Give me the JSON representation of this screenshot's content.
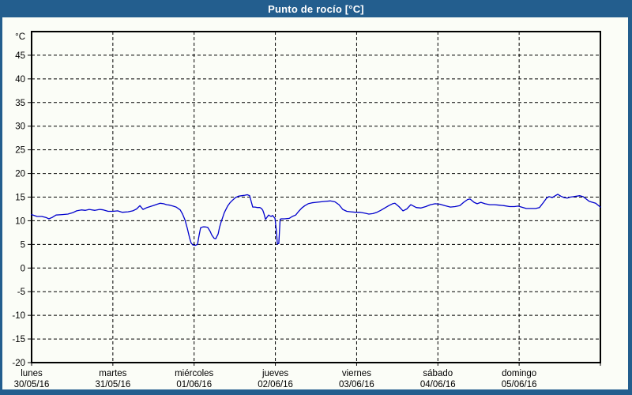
{
  "window": {
    "title": "Punto de rocío [°C]"
  },
  "colors": {
    "chrome": "#235e8e",
    "title_text": "#ffffff",
    "canvas_bg": "#fbfdf7",
    "plot_border": "#000000",
    "grid": "#000000",
    "label_text": "#000000",
    "series_line": "#0000cd"
  },
  "chart_data": {
    "type": "line",
    "title": "Punto de rocío [°C]",
    "unit_label": "°C",
    "ylim": [
      -20,
      50
    ],
    "yticks": [
      45,
      40,
      35,
      30,
      25,
      20,
      15,
      10,
      5,
      0,
      -5,
      -10,
      -15,
      -20
    ],
    "grid": "dashed",
    "x_range_hours": [
      0,
      168
    ],
    "x_day_tick_hours": [
      0,
      24,
      48,
      72,
      96,
      120,
      144,
      168
    ],
    "x_days": [
      {
        "name": "lunes",
        "date": "30/05/16",
        "start_hour": 0
      },
      {
        "name": "martes",
        "date": "31/05/16",
        "start_hour": 24
      },
      {
        "name": "miércoles",
        "date": "01/06/16",
        "start_hour": 48
      },
      {
        "name": "jueves",
        "date": "02/06/16",
        "start_hour": 72
      },
      {
        "name": "viernes",
        "date": "03/06/16",
        "start_hour": 96
      },
      {
        "name": "sábado",
        "date": "04/06/16",
        "start_hour": 120
      },
      {
        "name": "domingo",
        "date": "05/06/16",
        "start_hour": 144
      }
    ],
    "series": [
      {
        "name": "Punto de rocío",
        "color": "#0000cd",
        "points": [
          [
            0,
            11.3
          ],
          [
            1.6,
            10.9
          ],
          [
            3,
            10.9
          ],
          [
            4.2,
            10.7
          ],
          [
            5.1,
            10.4
          ],
          [
            6.1,
            10.7
          ],
          [
            7.2,
            11.2
          ],
          [
            9.1,
            11.3
          ],
          [
            10.7,
            11.4
          ],
          [
            12.1,
            11.7
          ],
          [
            13.3,
            12.1
          ],
          [
            14.7,
            12.3
          ],
          [
            15.9,
            12.2
          ],
          [
            17,
            12.4
          ],
          [
            18.7,
            12.2
          ],
          [
            20.1,
            12.4
          ],
          [
            21.2,
            12.3
          ],
          [
            22.6,
            12
          ],
          [
            24,
            12
          ],
          [
            25.4,
            12.1
          ],
          [
            26.8,
            11.8
          ],
          [
            28.5,
            11.9
          ],
          [
            29.9,
            12.1
          ],
          [
            31,
            12.5
          ],
          [
            32,
            13.2
          ],
          [
            32.9,
            12.4
          ],
          [
            34.1,
            12.8
          ],
          [
            35,
            13
          ],
          [
            35.9,
            13.2
          ],
          [
            37.1,
            13.5
          ],
          [
            38,
            13.7
          ],
          [
            39,
            13.6
          ],
          [
            39.9,
            13.4
          ],
          [
            40.8,
            13.3
          ],
          [
            41.8,
            13.1
          ],
          [
            42.7,
            12.9
          ],
          [
            43.9,
            12.3
          ],
          [
            44.6,
            11.4
          ],
          [
            45.3,
            10.2
          ],
          [
            46,
            8.4
          ],
          [
            46.7,
            6.3
          ],
          [
            47.1,
            5.3
          ],
          [
            47.6,
            4.9
          ],
          [
            48.3,
            4.8
          ],
          [
            49,
            5
          ],
          [
            49.5,
            7
          ],
          [
            49.9,
            8.5
          ],
          [
            50.6,
            8.7
          ],
          [
            51.3,
            8.7
          ],
          [
            52,
            8.6
          ],
          [
            52.7,
            7.8
          ],
          [
            53.2,
            7
          ],
          [
            53.9,
            6.3
          ],
          [
            54.4,
            6.2
          ],
          [
            55.1,
            7.2
          ],
          [
            55.5,
            8.6
          ],
          [
            56,
            9.8
          ],
          [
            56.5,
            10.8
          ],
          [
            56.9,
            11.7
          ],
          [
            57.4,
            12.4
          ],
          [
            57.9,
            13.1
          ],
          [
            58.6,
            13.8
          ],
          [
            59.3,
            14.3
          ],
          [
            60.2,
            14.9
          ],
          [
            61.1,
            15.2
          ],
          [
            62.1,
            15.3
          ],
          [
            63,
            15.4
          ],
          [
            63.7,
            15.5
          ],
          [
            64.4,
            15.3
          ],
          [
            64.9,
            14
          ],
          [
            65.3,
            12.9
          ],
          [
            66,
            12.9
          ],
          [
            66.7,
            12.8
          ],
          [
            67.4,
            12.8
          ],
          [
            67.9,
            12.6
          ],
          [
            68.3,
            12.2
          ],
          [
            68.6,
            11.6
          ],
          [
            69.1,
            10.3
          ],
          [
            70,
            11.2
          ],
          [
            70.7,
            10.9
          ],
          [
            71.2,
            11.1
          ],
          [
            71.9,
            10.5
          ],
          [
            72.3,
            7.8
          ],
          [
            72.6,
            5.1
          ],
          [
            73,
            5.2
          ],
          [
            73.4,
            10.3
          ],
          [
            73.7,
            10.4
          ],
          [
            74.7,
            10.4
          ],
          [
            76.1,
            10.5
          ],
          [
            77,
            10.9
          ],
          [
            78,
            11.2
          ],
          [
            78.9,
            12
          ],
          [
            79.8,
            12.7
          ],
          [
            80.7,
            13.2
          ],
          [
            81.7,
            13.6
          ],
          [
            82.8,
            13.8
          ],
          [
            84,
            13.9
          ],
          [
            85.4,
            14
          ],
          [
            86.8,
            14.1
          ],
          [
            88.2,
            14.2
          ],
          [
            89.6,
            14
          ],
          [
            90.8,
            13.4
          ],
          [
            91.9,
            12.4
          ],
          [
            93.1,
            12
          ],
          [
            94.3,
            11.9
          ],
          [
            95.7,
            11.8
          ],
          [
            97.1,
            11.8
          ],
          [
            98.5,
            11.6
          ],
          [
            99.6,
            11.4
          ],
          [
            100.8,
            11.5
          ],
          [
            102,
            11.8
          ],
          [
            103.1,
            12.2
          ],
          [
            104.3,
            12.7
          ],
          [
            105.5,
            13.2
          ],
          [
            106.6,
            13.6
          ],
          [
            107.3,
            13.7
          ],
          [
            108.5,
            13
          ],
          [
            109.7,
            12.1
          ],
          [
            110.8,
            12.5
          ],
          [
            112,
            13.4
          ],
          [
            113.6,
            12.8
          ],
          [
            115,
            12.7
          ],
          [
            116.4,
            13
          ],
          [
            117.8,
            13.4
          ],
          [
            119.2,
            13.6
          ],
          [
            120.6,
            13.5
          ],
          [
            122,
            13.2
          ],
          [
            123.7,
            12.9
          ],
          [
            125.1,
            13
          ],
          [
            126.5,
            13.2
          ],
          [
            127.6,
            13.9
          ],
          [
            128.8,
            14.5
          ],
          [
            129.5,
            14.6
          ],
          [
            130.7,
            13.9
          ],
          [
            131.6,
            13.6
          ],
          [
            132.7,
            13.9
          ],
          [
            133.9,
            13.6
          ],
          [
            135.3,
            13.4
          ],
          [
            136.7,
            13.4
          ],
          [
            138.1,
            13.3
          ],
          [
            139.5,
            13.2
          ],
          [
            141.2,
            13
          ],
          [
            142.6,
            13
          ],
          [
            143.7,
            13.1
          ],
          [
            144.7,
            12.9
          ],
          [
            146.1,
            12.6
          ],
          [
            147.5,
            12.6
          ],
          [
            148.9,
            12.6
          ],
          [
            150,
            12.8
          ],
          [
            151.2,
            13.9
          ],
          [
            152.1,
            14.8
          ],
          [
            152.8,
            15.1
          ],
          [
            153.8,
            14.9
          ],
          [
            154.7,
            15.3
          ],
          [
            155.4,
            15.6
          ],
          [
            156.3,
            15.2
          ],
          [
            157.3,
            14.9
          ],
          [
            158.2,
            14.8
          ],
          [
            159.1,
            15
          ],
          [
            160.1,
            15.1
          ],
          [
            161,
            15.2
          ],
          [
            161.9,
            15.3
          ],
          [
            162.9,
            15.1
          ],
          [
            163.8,
            14.6
          ],
          [
            164.7,
            14.1
          ],
          [
            165.7,
            13.9
          ],
          [
            166.6,
            13.7
          ],
          [
            167.3,
            13.3
          ],
          [
            168,
            12.9
          ]
        ]
      }
    ]
  }
}
